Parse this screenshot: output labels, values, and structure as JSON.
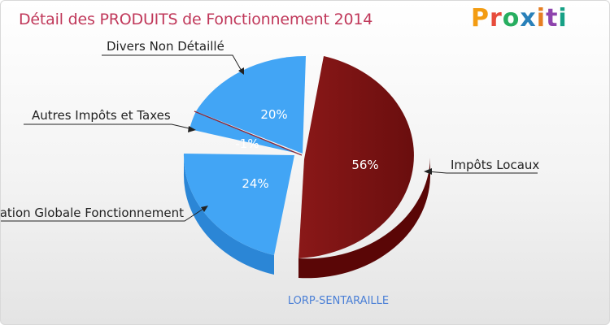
{
  "header": {
    "title": "Détail des PRODUITS de Fonctionnement 2014",
    "logo": "Proxiti"
  },
  "footer": {
    "subtitle": "LORP-SENTARAILLE"
  },
  "colors": {
    "title": "#c0385a",
    "blue": "#42a5f5",
    "red": "#7a1414",
    "logo": [
      "#f39c12",
      "#e74c3c",
      "#27ae60",
      "#2980b9",
      "#e67e22",
      "#8e44ad",
      "#16a085"
    ]
  },
  "chart_data": {
    "type": "pie",
    "title": "Détail des PRODUITS de Fonctionnement 2014",
    "slices": [
      {
        "label": "Impôts Locaux",
        "value": 56,
        "pct_label": "56%",
        "color": "#7a1414"
      },
      {
        "label": "Dotation Globale Fonctionnement",
        "value": 24,
        "pct_label": "24%",
        "color": "#42a5f5"
      },
      {
        "label": "Autres Impôts et Taxes",
        "value": -1,
        "pct_label": "-1%",
        "color": "#42a5f5"
      },
      {
        "label": "Divers Non Détaillé",
        "value": 20,
        "pct_label": "20%",
        "color": "#42a5f5"
      }
    ]
  }
}
